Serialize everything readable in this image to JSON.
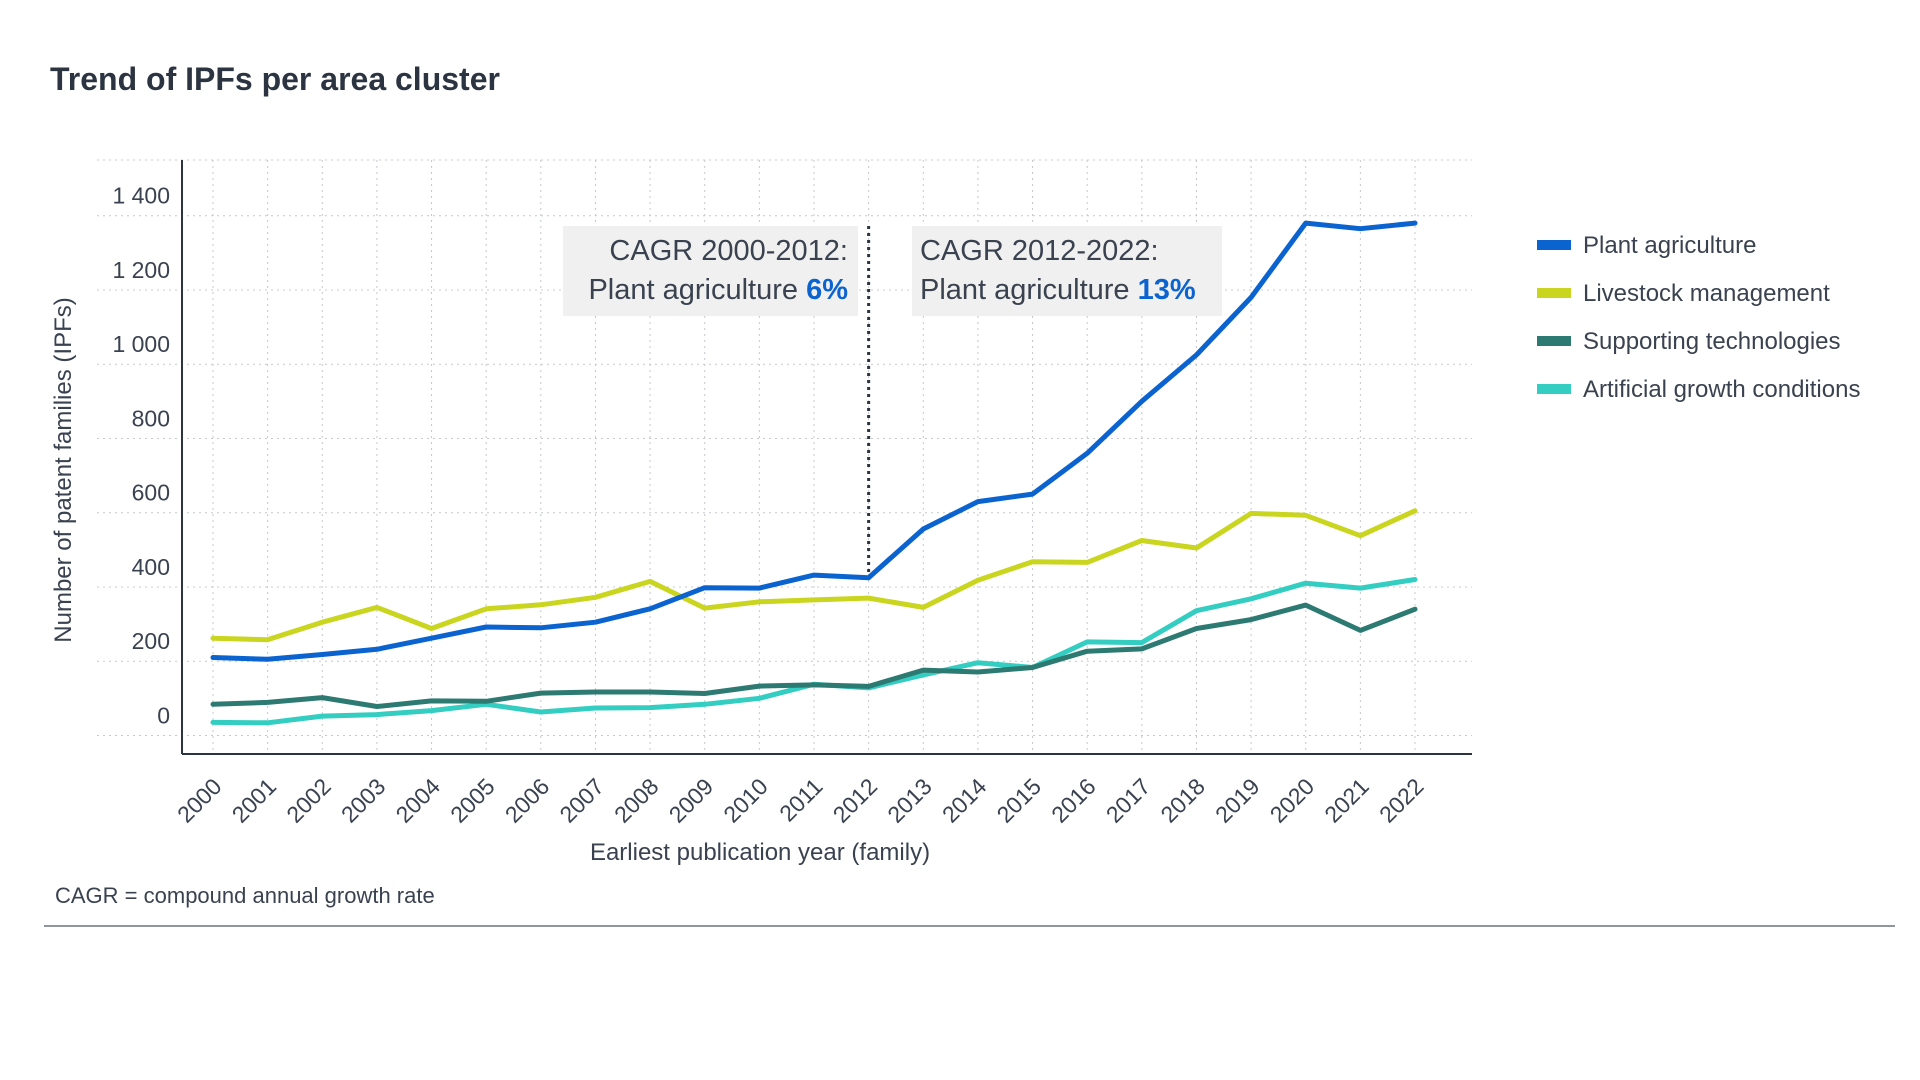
{
  "title": "Trend of IPFs per area cluster",
  "footnote": "CAGR =  compound annual growth rate",
  "annotations": [
    {
      "line1": "CAGR 2000-2012:",
      "line2_prefix": "Plant agriculture ",
      "value": "6%",
      "align": "right"
    },
    {
      "line1": "CAGR 2012-2022:",
      "line2_prefix": "Plant agriculture ",
      "value": "13%",
      "align": "left"
    }
  ],
  "chart_data": {
    "type": "line",
    "title": "Trend of IPFs per area cluster",
    "xlabel": "Earliest publication year (family)",
    "ylabel": "Number of patent families (IPFs)",
    "ylim": [
      -50,
      1550
    ],
    "y_ticks": [
      0,
      200,
      400,
      600,
      800,
      1000,
      1200,
      1400
    ],
    "y_tick_labels": [
      "0",
      "200",
      "400",
      "600",
      "800",
      "1 000",
      "1 200",
      "1 400"
    ],
    "grid": true,
    "legend_position": "right",
    "x": [
      "2000",
      "2001",
      "2002",
      "2003",
      "2004",
      "2005",
      "2006",
      "2007",
      "2008",
      "2009",
      "2010",
      "2011",
      "2012",
      "2013",
      "2014",
      "2015",
      "2016",
      "2017",
      "2018",
      "2019",
      "2020",
      "2021",
      "2022"
    ],
    "split_year": "2012",
    "series": [
      {
        "name": "Plant agriculture",
        "color": "#0b63d0",
        "values": [
          210,
          205,
          218,
          232,
          262,
          292,
          290,
          305,
          341,
          398,
          397,
          432,
          425,
          556,
          630,
          650,
          760,
          900,
          1025,
          1180,
          1380,
          1365,
          1380
        ]
      },
      {
        "name": "Livestock management",
        "color": "#cad51f",
        "values": [
          262,
          258,
          305,
          345,
          288,
          341,
          352,
          372,
          415,
          343,
          360,
          365,
          370,
          345,
          418,
          468,
          466,
          525,
          505,
          598,
          593,
          538,
          605
        ]
      },
      {
        "name": "Supporting technologies",
        "color": "#2d7a72",
        "values": [
          84,
          89,
          102,
          78,
          93,
          92,
          114,
          117,
          117,
          113,
          133,
          136,
          132,
          176,
          171,
          183,
          227,
          233,
          288,
          312,
          351,
          283,
          340
        ]
      },
      {
        "name": "Artificial growth conditions",
        "color": "#33cdc1",
        "values": [
          35,
          34,
          52,
          56,
          67,
          84,
          63,
          74,
          75,
          84,
          100,
          138,
          128,
          163,
          196,
          183,
          252,
          250,
          336,
          368,
          410,
          397,
          420
        ]
      }
    ]
  }
}
